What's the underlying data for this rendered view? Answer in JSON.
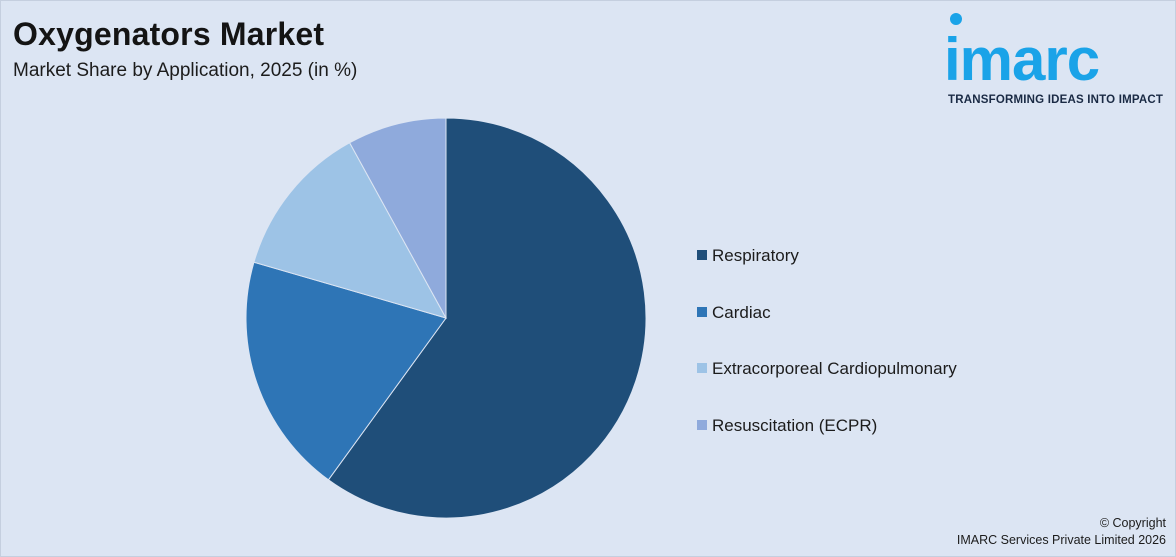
{
  "header": {
    "title": "Oxygenators Market",
    "subtitle": "Market Share by Application, 2025 (in %)"
  },
  "logo": {
    "wordmark": "imarc",
    "tagline": "TRANSFORMING IDEAS INTO IMPACT",
    "color": "#1aa3e8"
  },
  "chart_data": {
    "type": "pie",
    "title": "Oxygenators Market",
    "subtitle": "Market Share by Application, 2025 (in %)",
    "legend_position": "right",
    "series": [
      {
        "name": "Respiratory",
        "value": 60,
        "color": "#1f4e79"
      },
      {
        "name": "Cardiac",
        "value": 19.5,
        "color": "#2e75b6"
      },
      {
        "name": "Extracorporeal Cardiopulmonary",
        "value": 12.5,
        "color": "#9dc3e6"
      },
      {
        "name": "Resuscitation (ECPR)",
        "value": 8,
        "color": "#8faadc"
      }
    ]
  },
  "footer": {
    "copyright_line1": "© Copyright",
    "copyright_line2": "IMARC Services Private Limited 2026"
  }
}
